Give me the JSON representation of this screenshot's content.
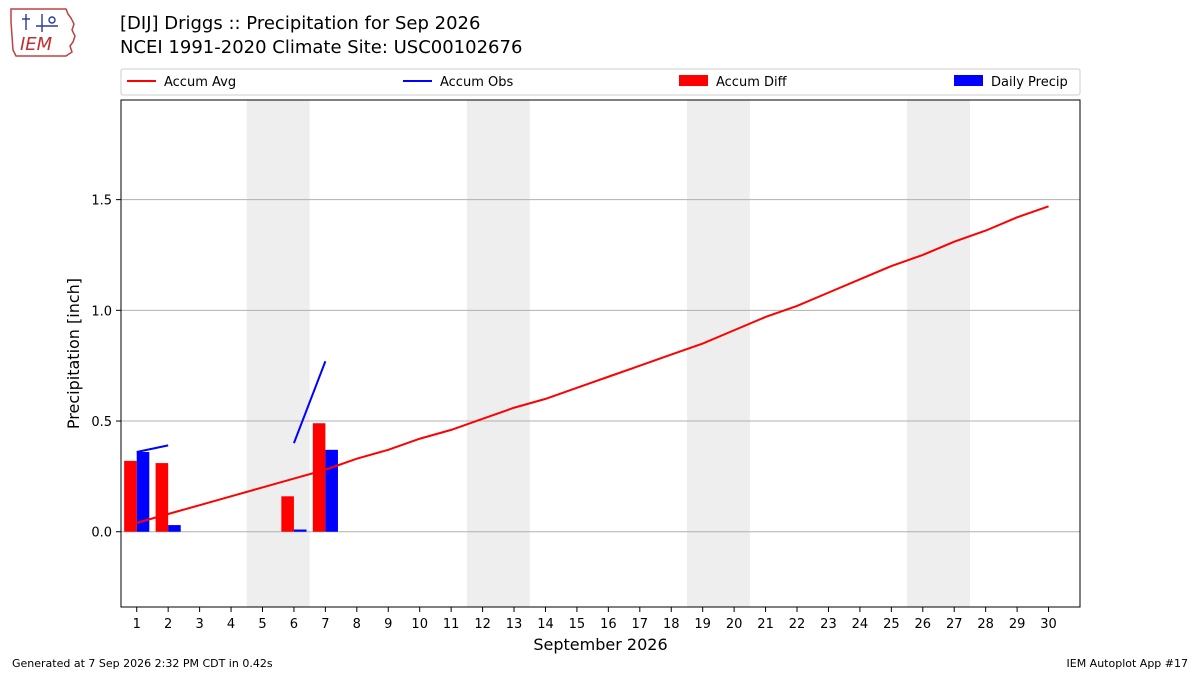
{
  "header": {
    "title": "[DIJ] Driggs :: Precipitation for Sep 2026",
    "subtitle": "NCEI 1991-2020 Climate Site: USC00102676",
    "logo_text": "IEM"
  },
  "footer": {
    "generated": "Generated at 7 Sep 2026 2:32 PM CDT in 0.42s",
    "app": "IEM Autoplot App #17"
  },
  "chart_data": {
    "type": "bar",
    "xlabel": "September 2026",
    "ylabel": "Precipitation [inch]",
    "ylim": [
      -0.34,
      1.95
    ],
    "xlim": [
      0.5,
      31.0
    ],
    "grid": true,
    "legend_position": "top",
    "x": [
      1,
      2,
      3,
      4,
      5,
      6,
      7,
      8,
      9,
      10,
      11,
      12,
      13,
      14,
      15,
      16,
      17,
      18,
      19,
      20,
      21,
      22,
      23,
      24,
      25,
      26,
      27,
      28,
      29,
      30
    ],
    "yticks": [
      0.0,
      0.5,
      1.0,
      1.5
    ],
    "weekend_shading": [
      [
        5,
        6
      ],
      [
        12,
        13
      ],
      [
        19,
        20
      ],
      [
        26,
        27
      ]
    ],
    "series": [
      {
        "name": "Accum Avg",
        "kind": "line",
        "color": "#ff0000",
        "values": [
          0.04,
          0.08,
          0.12,
          0.16,
          0.2,
          0.24,
          0.28,
          0.33,
          0.37,
          0.42,
          0.46,
          0.51,
          0.56,
          0.6,
          0.65,
          0.7,
          0.75,
          0.8,
          0.85,
          0.91,
          0.97,
          1.02,
          1.08,
          1.14,
          1.2,
          1.25,
          1.31,
          1.36,
          1.42,
          1.47
        ]
      },
      {
        "name": "Accum Obs",
        "kind": "line",
        "color": "#0000ff",
        "values": [
          0.36,
          0.39,
          null,
          null,
          null,
          0.4,
          0.77,
          null,
          null,
          null,
          null,
          null,
          null,
          null,
          null,
          null,
          null,
          null,
          null,
          null,
          null,
          null,
          null,
          null,
          null,
          null,
          null,
          null,
          null,
          null
        ]
      },
      {
        "name": "Accum Diff",
        "kind": "bar",
        "color": "#ff0000",
        "values": [
          0.32,
          0.31,
          null,
          null,
          null,
          0.16,
          0.49,
          null,
          null,
          null,
          null,
          null,
          null,
          null,
          null,
          null,
          null,
          null,
          null,
          null,
          null,
          null,
          null,
          null,
          null,
          null,
          null,
          null,
          null,
          null
        ]
      },
      {
        "name": "Daily Precip",
        "kind": "bar",
        "color": "#0000ff",
        "values": [
          0.36,
          0.03,
          null,
          null,
          null,
          0.01,
          0.37,
          null,
          null,
          null,
          null,
          null,
          null,
          null,
          null,
          null,
          null,
          null,
          null,
          null,
          null,
          null,
          null,
          null,
          null,
          null,
          null,
          null,
          null,
          null
        ]
      }
    ]
  }
}
